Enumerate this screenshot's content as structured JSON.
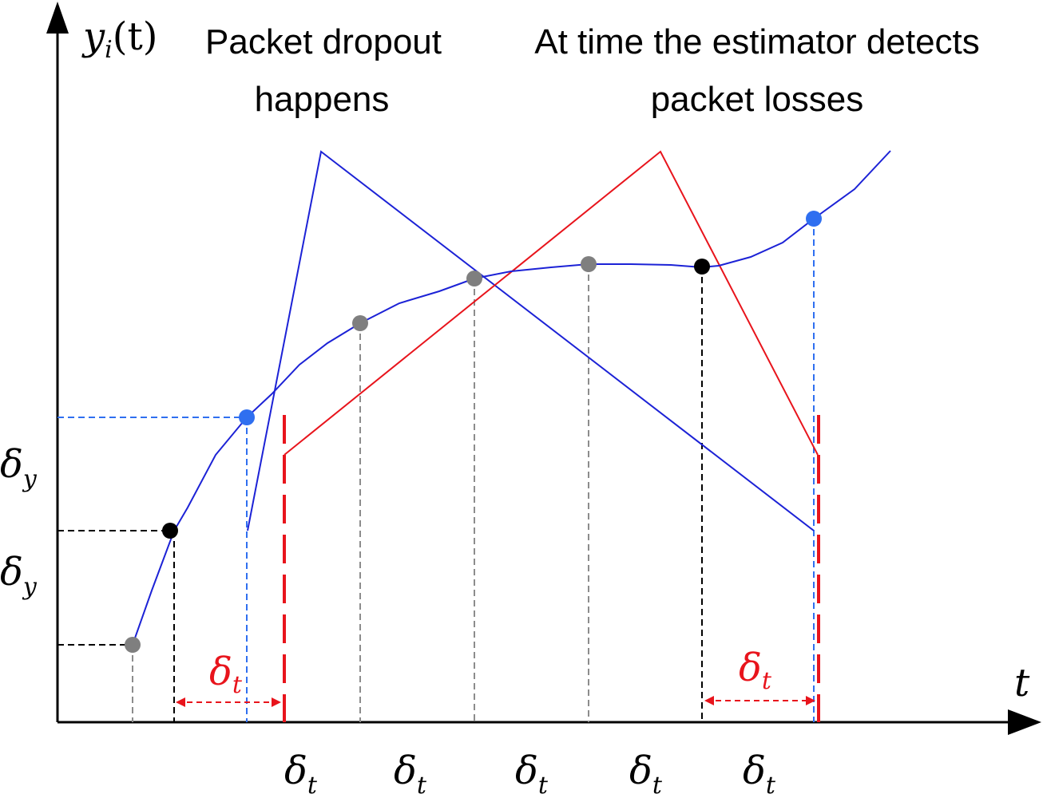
{
  "axes": {
    "y_label_main": "y",
    "y_label_sub": "i",
    "y_label_arg": "(t)",
    "x_label": "t"
  },
  "annotations": {
    "dropout_line1": "Packet dropout",
    "dropout_line2": "happens",
    "detect_line1": "At time the estimator detects",
    "detect_line2": "packet losses"
  },
  "symbols": {
    "delta": "δ",
    "y_sub": "y",
    "t_sub": "t"
  },
  "tick_labels": [
    {
      "main": "δ",
      "sub": "t"
    },
    {
      "main": "δ",
      "sub": "t"
    },
    {
      "main": "δ",
      "sub": "t"
    },
    {
      "main": "δ",
      "sub": "t"
    },
    {
      "main": "δ",
      "sub": "t"
    }
  ],
  "left_labels": [
    {
      "main": "δ",
      "sub": "y"
    },
    {
      "main": "δ",
      "sub": "y"
    }
  ],
  "interval_labels": [
    {
      "main": "δ",
      "sub": "t"
    },
    {
      "main": "δ",
      "sub": "t"
    }
  ],
  "colors": {
    "curve": "#1c22d6",
    "red": "#e8141c",
    "blue_point": "#2f6ff0",
    "black_point": "#000000",
    "gray_point": "#7f7f7f",
    "gray_dash": "#8c8c8c"
  }
}
